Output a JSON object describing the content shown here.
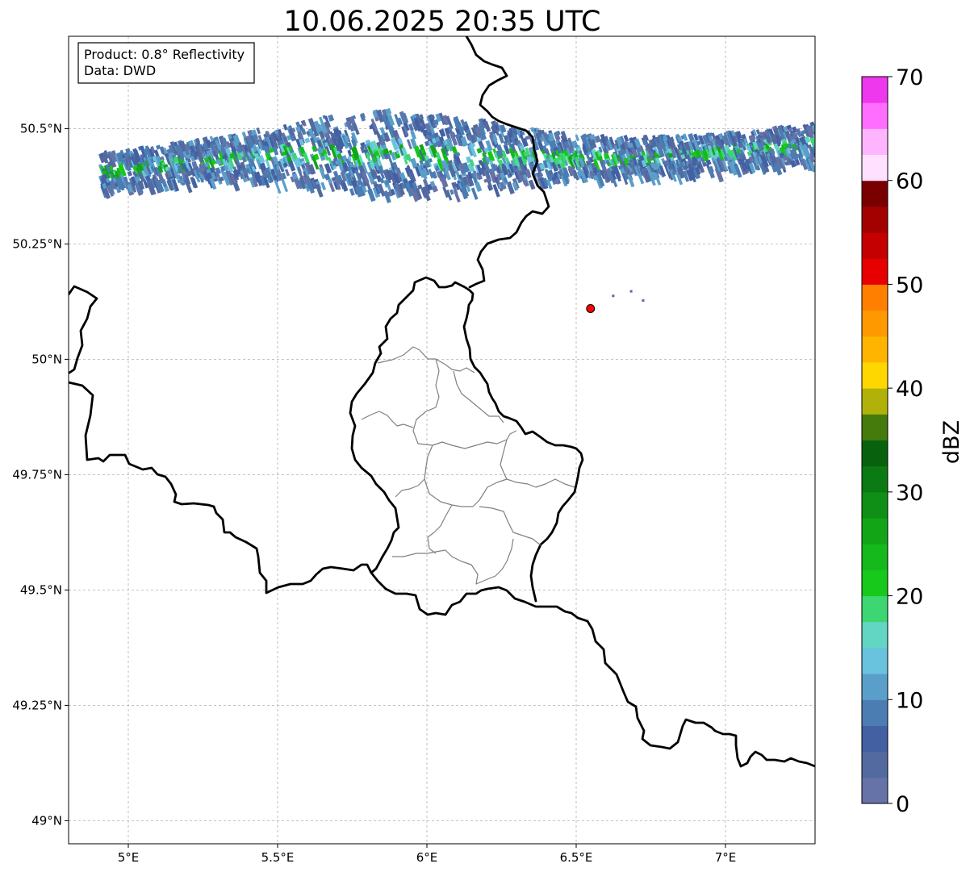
{
  "title": "10.06.2025 20:35 UTC",
  "info_box": {
    "product": "Product: 0.8° Reflectivity",
    "data": "Data: DWD"
  },
  "map": {
    "lon_range": [
      4.8,
      7.3
    ],
    "lat_range": [
      48.95,
      50.7
    ],
    "x_ticks": [
      {
        "value": 5.0,
        "label": "5°E"
      },
      {
        "value": 5.5,
        "label": "5.5°E"
      },
      {
        "value": 6.0,
        "label": "6°E"
      },
      {
        "value": 6.5,
        "label": "6.5°E"
      },
      {
        "value": 7.0,
        "label": "7°E"
      }
    ],
    "y_ticks": [
      {
        "value": 50.5,
        "label": "50.5°N"
      },
      {
        "value": 50.25,
        "label": "50.25°N"
      },
      {
        "value": 50.0,
        "label": "50°N"
      },
      {
        "value": 49.75,
        "label": "49.75°N"
      },
      {
        "value": 49.5,
        "label": "49.5°N"
      },
      {
        "value": 49.25,
        "label": "49.25°N"
      },
      {
        "value": 49.0,
        "label": "49°N"
      }
    ],
    "grid": true,
    "radar_site": {
      "lon": 6.548,
      "lat": 50.11,
      "color": "#ff0000"
    }
  },
  "colorbar": {
    "label": "dBZ",
    "min": 0,
    "max": 70,
    "step": 2.5,
    "tick_values": [
      0,
      10,
      20,
      30,
      40,
      50,
      60,
      70
    ],
    "tick_labels": [
      "0",
      "10",
      "20",
      "30",
      "40",
      "50",
      "60",
      "70"
    ],
    "colors": [
      "#6573a8",
      "#526aa0",
      "#4360a3",
      "#4b7db3",
      "#5a9fca",
      "#69c3df",
      "#63d5c3",
      "#3dd673",
      "#16c91a",
      "#15b91c",
      "#12a516",
      "#0f8f15",
      "#0b7a12",
      "#08620d",
      "#457a0c",
      "#b0b20a",
      "#ffd700",
      "#ffb400",
      "#ff9900",
      "#ff7f00",
      "#e60000",
      "#c40000",
      "#a30000",
      "#7a0000",
      "#ffe1ff",
      "#ffb4ff",
      "#ff6eff",
      "#ee38ee"
    ]
  },
  "radar_echo": {
    "description_band": "narrow west-east band of light echoes (mostly 0–15 dBZ, embedded 20–30 dBZ streaks) along ~50.45°N from 4.9°E to 7.3°E",
    "lon_extent": [
      4.9,
      7.3
    ],
    "lat_extent": [
      50.33,
      50.56
    ]
  }
}
